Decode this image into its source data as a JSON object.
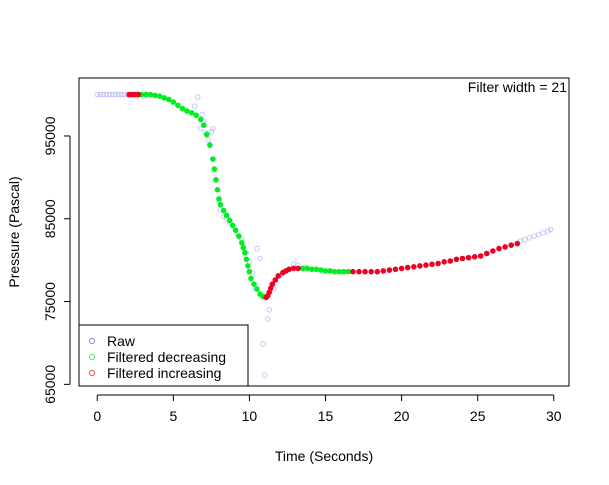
{
  "chart_data": {
    "type": "scatter",
    "title": "",
    "xlabel": "Time (Seconds)",
    "ylabel": "Pressure (Pascal)",
    "xlim": [
      -1.2,
      31
    ],
    "ylim": [
      64800,
      102000
    ],
    "x_ticks": [
      0,
      5,
      10,
      15,
      20,
      25,
      30
    ],
    "x_tick_labels": [
      "0",
      "5",
      "10",
      "15",
      "20",
      "25",
      "30"
    ],
    "y_ticks": [
      65000,
      75000,
      85000,
      95000
    ],
    "y_tick_labels": [
      "65000",
      "75000",
      "85000",
      "95000"
    ],
    "annotation": "Filter width =  21",
    "grid": false,
    "legend_position": "bottom-left",
    "colors": {
      "raw": "#9999ee",
      "decreasing": "#00ee22",
      "increasing": "#ee0022",
      "axis": "#000000"
    },
    "legend": [
      {
        "label": "Raw",
        "color": "#9999ee"
      },
      {
        "label": "Filtered decreasing",
        "color": "#66ee66"
      },
      {
        "label": "Filtered increasing",
        "color": "#ee6666"
      }
    ],
    "series": [
      {
        "name": "Raw",
        "color": "#9999ee",
        "points": [
          [
            0.0,
            100000
          ],
          [
            0.2,
            100000
          ],
          [
            0.4,
            100000
          ],
          [
            0.6,
            100000
          ],
          [
            0.8,
            100000
          ],
          [
            1.0,
            100000
          ],
          [
            1.2,
            100000
          ],
          [
            1.4,
            100000
          ],
          [
            1.6,
            100000
          ],
          [
            1.8,
            100000
          ],
          [
            2.0,
            100000
          ],
          [
            2.2,
            100000
          ],
          [
            6.6,
            99700
          ],
          [
            6.4,
            98600
          ],
          [
            6.9,
            97600
          ],
          [
            7.0,
            96800
          ],
          [
            6.8,
            95900
          ],
          [
            7.1,
            95400
          ],
          [
            7.2,
            95100
          ],
          [
            7.5,
            95500
          ],
          [
            7.6,
            95900
          ],
          [
            7.3,
            94500
          ],
          [
            8.0,
            87200
          ],
          [
            8.1,
            86100
          ],
          [
            8.3,
            85300
          ],
          [
            8.5,
            85000
          ],
          [
            8.7,
            84500
          ],
          [
            9.0,
            84000
          ],
          [
            9.5,
            82500
          ],
          [
            9.8,
            80900
          ],
          [
            10.0,
            79800
          ],
          [
            10.2,
            78500
          ],
          [
            10.4,
            76600
          ],
          [
            10.5,
            81400
          ],
          [
            10.7,
            80200
          ],
          [
            10.9,
            69900
          ],
          [
            11.0,
            66100
          ],
          [
            11.2,
            72900
          ],
          [
            11.3,
            74000
          ],
          [
            11.6,
            76500
          ],
          [
            12.0,
            78200
          ],
          [
            12.5,
            78800
          ],
          [
            12.9,
            79500
          ],
          [
            13.2,
            79400
          ],
          [
            13.7,
            79100
          ],
          [
            27.8,
            82300
          ],
          [
            28.1,
            82500
          ],
          [
            28.4,
            82700
          ],
          [
            28.7,
            82900
          ],
          [
            29.0,
            83100
          ],
          [
            29.3,
            83300
          ],
          [
            29.6,
            83500
          ],
          [
            29.8,
            83700
          ]
        ]
      },
      {
        "name": "Filtered decreasing",
        "color": "#00ee22",
        "points": [
          [
            2.9,
            100000
          ],
          [
            3.2,
            100000
          ],
          [
            3.5,
            100000
          ],
          [
            3.8,
            99900
          ],
          [
            4.1,
            99800
          ],
          [
            4.4,
            99600
          ],
          [
            4.7,
            99400
          ],
          [
            5.0,
            99100
          ],
          [
            5.3,
            98700
          ],
          [
            5.6,
            98300
          ],
          [
            5.9,
            98000
          ],
          [
            6.2,
            97800
          ],
          [
            6.5,
            97500
          ],
          [
            6.8,
            97000
          ],
          [
            7.0,
            96300
          ],
          [
            7.2,
            95200
          ],
          [
            7.4,
            93900
          ],
          [
            7.6,
            92200
          ],
          [
            7.7,
            91000
          ],
          [
            7.8,
            89700
          ],
          [
            7.9,
            88500
          ],
          [
            8.0,
            87400
          ],
          [
            8.1,
            86700
          ],
          [
            8.3,
            86000
          ],
          [
            8.5,
            85400
          ],
          [
            8.7,
            84800
          ],
          [
            8.9,
            84200
          ],
          [
            9.1,
            83600
          ],
          [
            9.3,
            82900
          ],
          [
            9.5,
            82100
          ],
          [
            9.6,
            81500
          ],
          [
            9.7,
            80900
          ],
          [
            9.8,
            80100
          ],
          [
            9.9,
            79300
          ],
          [
            10.0,
            78600
          ],
          [
            10.1,
            77800
          ],
          [
            10.3,
            77100
          ],
          [
            10.5,
            76500
          ],
          [
            10.7,
            75900
          ],
          [
            10.9,
            75600
          ],
          [
            13.5,
            79000
          ],
          [
            13.8,
            79000
          ],
          [
            14.1,
            78900
          ],
          [
            14.4,
            78900
          ],
          [
            14.7,
            78800
          ],
          [
            15.0,
            78700
          ],
          [
            15.3,
            78700
          ],
          [
            15.6,
            78600
          ],
          [
            15.9,
            78600
          ],
          [
            16.2,
            78600
          ],
          [
            16.5,
            78600
          ]
        ]
      },
      {
        "name": "Filtered increasing",
        "color": "#ee0022",
        "points": [
          [
            2.1,
            100000
          ],
          [
            2.3,
            100000
          ],
          [
            2.5,
            100000
          ],
          [
            2.7,
            100000
          ],
          [
            11.1,
            75500
          ],
          [
            11.2,
            75700
          ],
          [
            11.3,
            76100
          ],
          [
            11.4,
            76600
          ],
          [
            11.5,
            77100
          ],
          [
            11.7,
            77600
          ],
          [
            11.9,
            78100
          ],
          [
            12.2,
            78500
          ],
          [
            12.4,
            78700
          ],
          [
            12.6,
            78900
          ],
          [
            12.9,
            79000
          ],
          [
            13.2,
            79000
          ],
          [
            16.8,
            78600
          ],
          [
            17.2,
            78600
          ],
          [
            17.6,
            78600
          ],
          [
            18.0,
            78600
          ],
          [
            18.4,
            78600
          ],
          [
            18.8,
            78700
          ],
          [
            19.2,
            78800
          ],
          [
            19.6,
            78900
          ],
          [
            20.0,
            79000
          ],
          [
            20.4,
            79100
          ],
          [
            20.8,
            79200
          ],
          [
            21.2,
            79300
          ],
          [
            21.6,
            79400
          ],
          [
            22.0,
            79500
          ],
          [
            22.4,
            79600
          ],
          [
            22.8,
            79800
          ],
          [
            23.2,
            79900
          ],
          [
            23.6,
            80100
          ],
          [
            24.0,
            80200
          ],
          [
            24.4,
            80300
          ],
          [
            24.8,
            80400
          ],
          [
            25.2,
            80500
          ],
          [
            25.6,
            80800
          ],
          [
            26.0,
            81100
          ],
          [
            26.4,
            81400
          ],
          [
            26.8,
            81600
          ],
          [
            27.2,
            81800
          ],
          [
            27.6,
            82000
          ]
        ]
      }
    ]
  }
}
